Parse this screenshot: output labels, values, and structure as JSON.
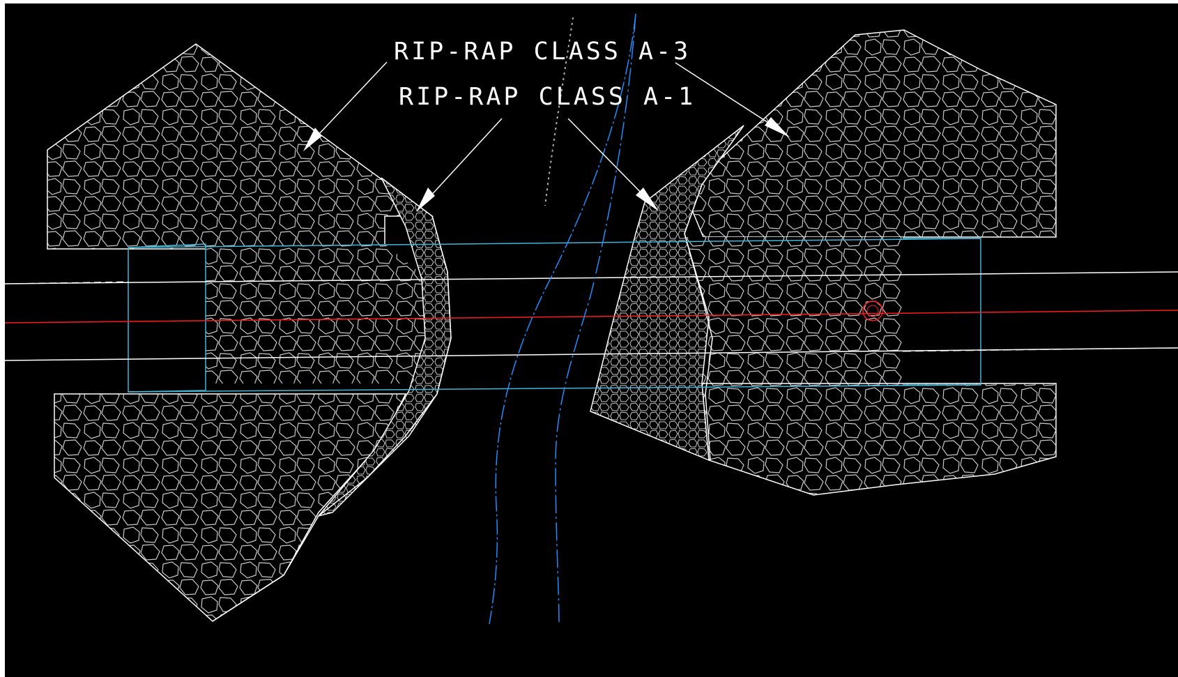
{
  "drawing": {
    "labels": {
      "class_a3": "RIP-RAP CLASS A-3",
      "class_a1": "RIP-RAP CLASS A-1"
    },
    "colors": {
      "background": "#000000",
      "linework": "#ffffff",
      "rock_outline": "#cfcfcf",
      "water_lines": "#1f8fff",
      "pipe_edges": "#3fb7d8",
      "centerline": "#ff1a1a"
    }
  }
}
